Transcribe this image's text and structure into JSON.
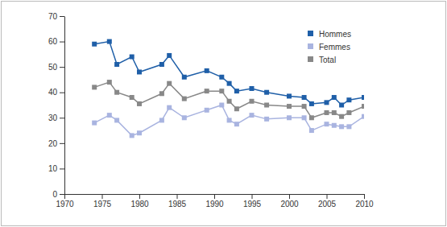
{
  "chart_data": {
    "type": "line",
    "x": [
      1974,
      1976,
      1977,
      1979,
      1980,
      1983,
      1984,
      1986,
      1989,
      1991,
      1992,
      1993,
      1995,
      1997,
      2000,
      2002,
      2003,
      2005,
      2006,
      2007,
      2008,
      2010
    ],
    "series": [
      {
        "name": "Hommes",
        "color": "#1f5fa8",
        "marker": "square",
        "values": [
          59,
          60,
          51,
          54,
          48,
          51,
          54.5,
          46,
          48.5,
          46,
          43.5,
          40.5,
          41.5,
          40,
          38.5,
          38,
          35.5,
          36,
          38,
          35,
          37,
          38
        ]
      },
      {
        "name": "Femmes",
        "color": "#a9b4e0",
        "marker": "square",
        "values": [
          28,
          31,
          29,
          23,
          24,
          29,
          34,
          30,
          33,
          35,
          29,
          27.5,
          31,
          29.5,
          30,
          30,
          25,
          27.5,
          27,
          26.5,
          26.5,
          30.5
        ]
      },
      {
        "name": "Total",
        "color": "#888888",
        "marker": "square",
        "values": [
          42,
          44,
          40,
          38,
          35.5,
          39.5,
          43.5,
          37.5,
          40.5,
          40.5,
          36.5,
          33.5,
          36.5,
          35,
          34.5,
          34.5,
          30,
          32,
          32,
          30.5,
          32,
          34.5
        ]
      }
    ],
    "xlim": [
      1970,
      2010
    ],
    "xticks": [
      1970,
      1975,
      1980,
      1985,
      1990,
      1995,
      2000,
      2005,
      2010
    ],
    "ylim": [
      0,
      70
    ],
    "yticks": [
      0,
      10,
      20,
      30,
      40,
      50,
      60,
      70
    ],
    "grid": false,
    "legend": "top-right"
  }
}
